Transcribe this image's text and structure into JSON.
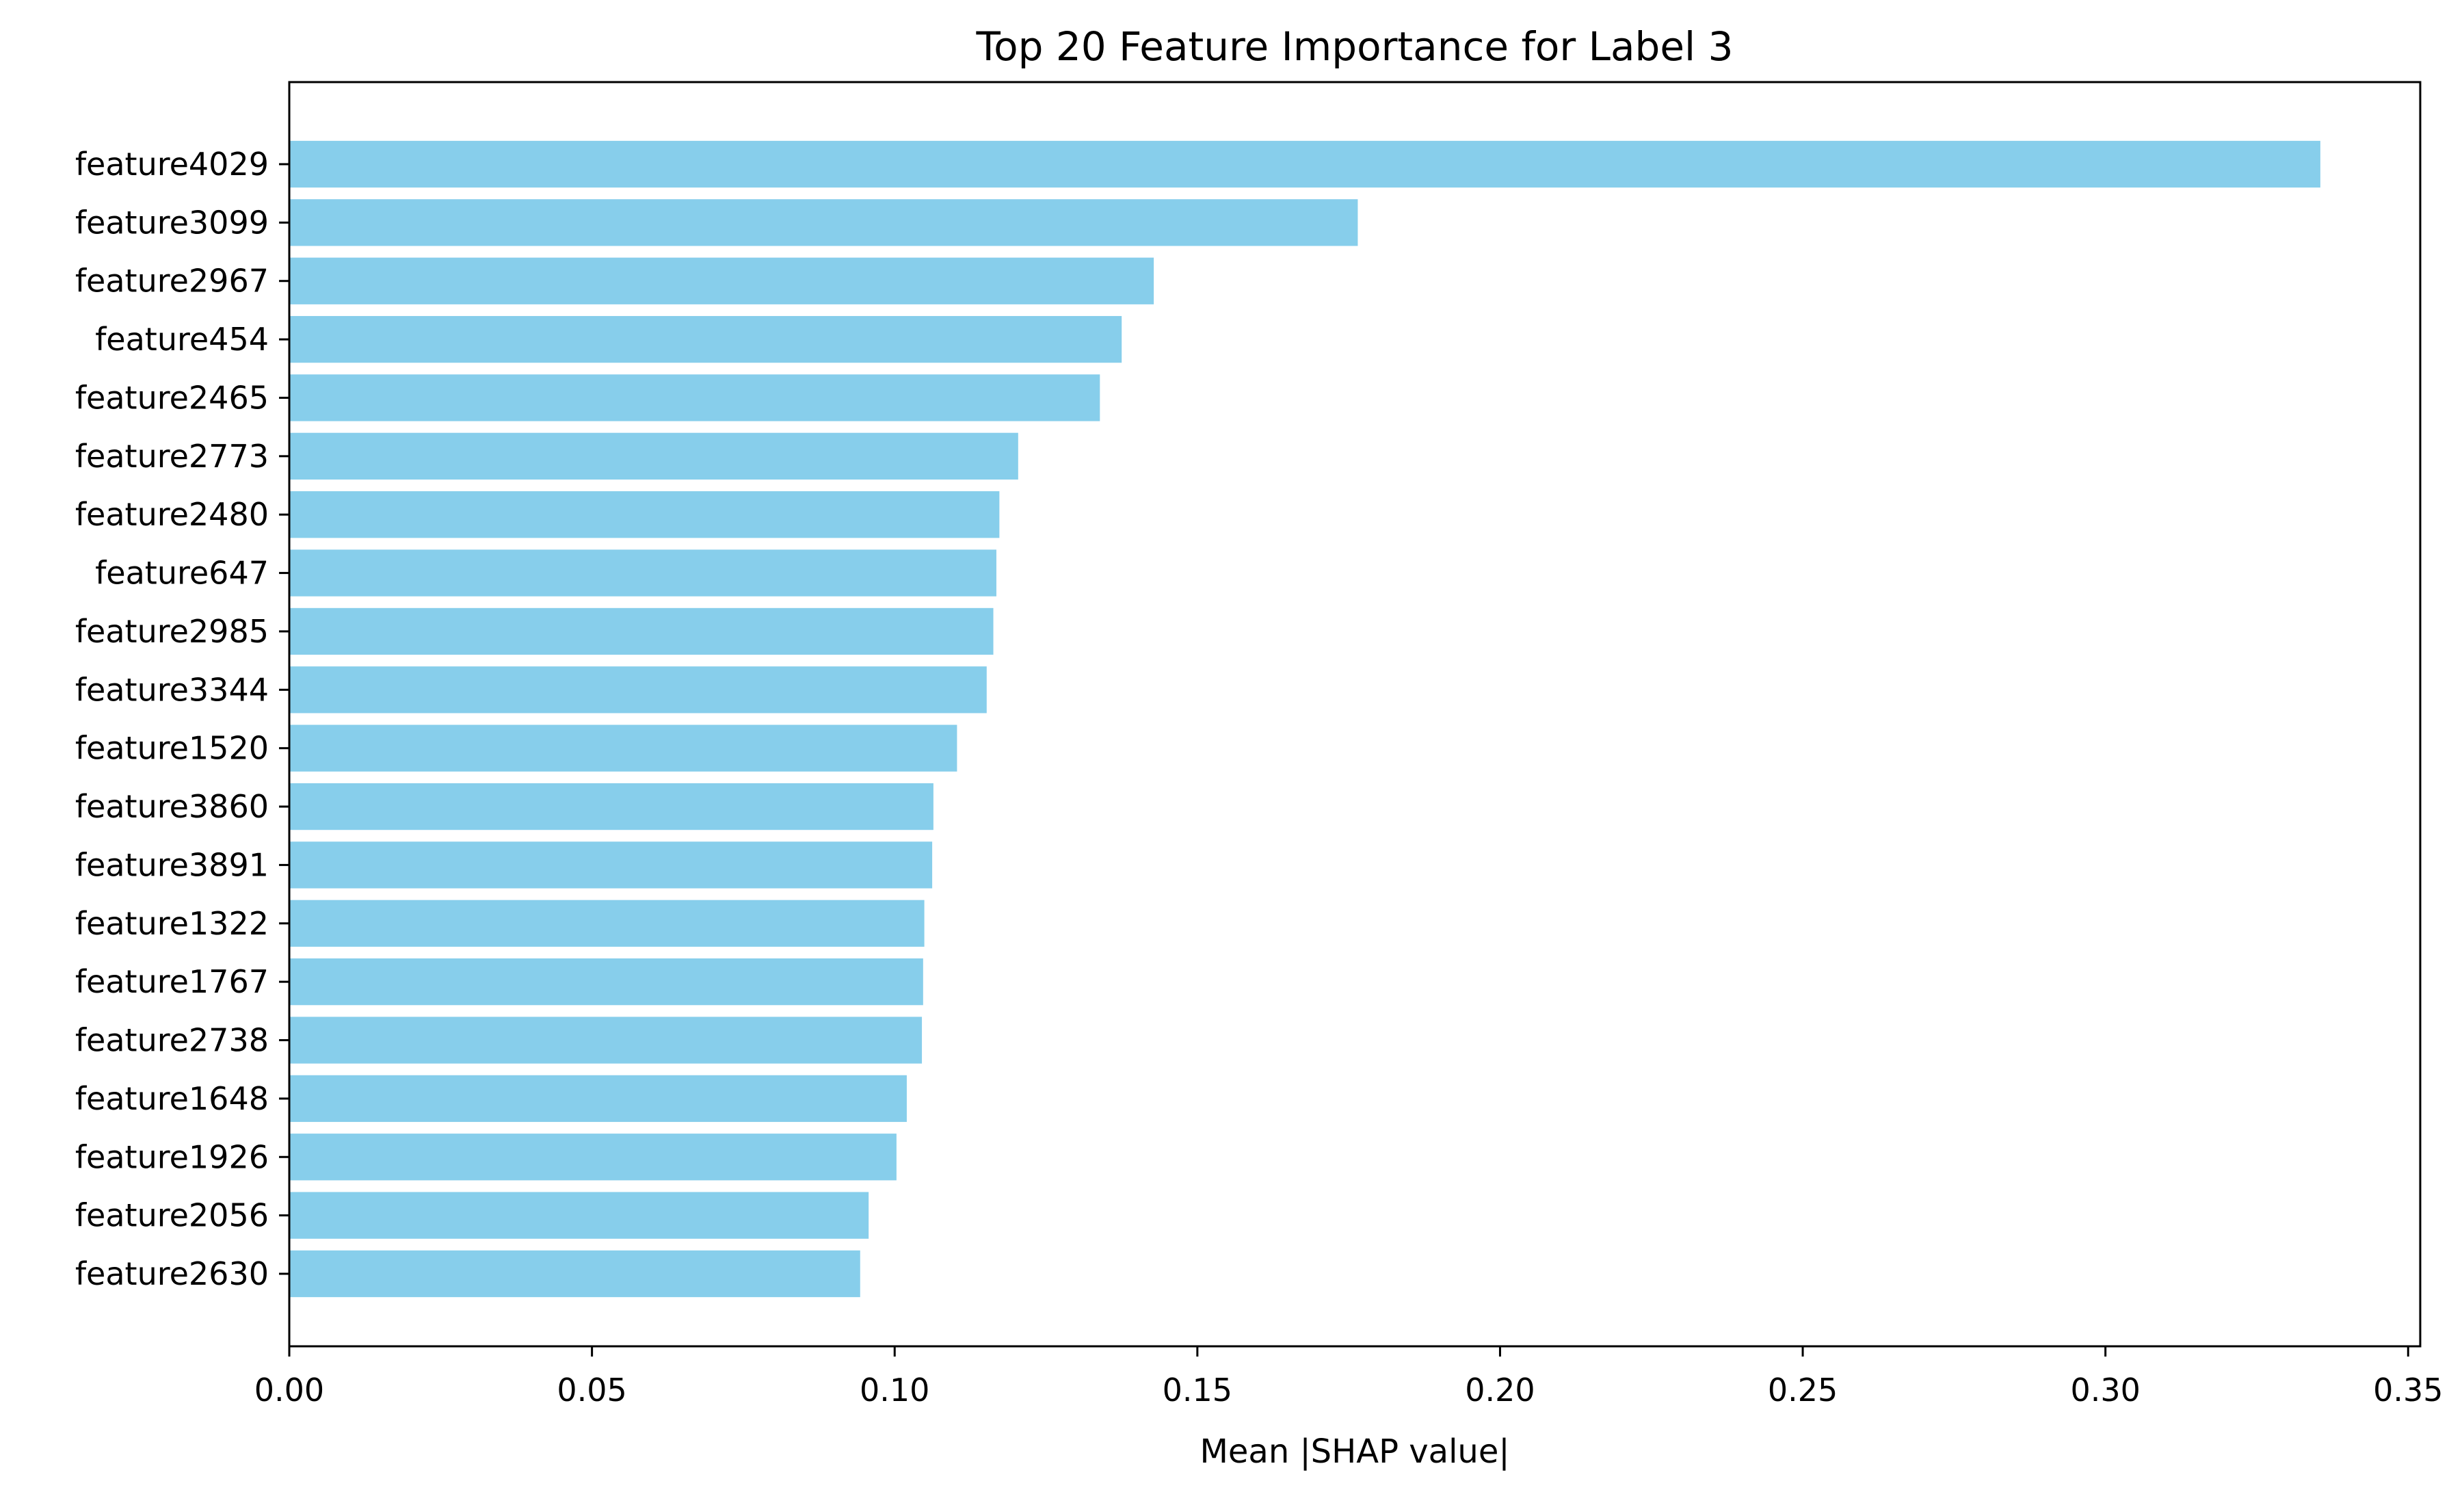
{
  "chart_data": {
    "type": "bar",
    "orientation": "horizontal",
    "title": "Top 20 Feature Importance for Label 3",
    "xlabel": "Mean |SHAP value|",
    "ylabel": "",
    "xlim": [
      0,
      0.352
    ],
    "x_ticks": [
      "0.00",
      "0.05",
      "0.10",
      "0.15",
      "0.20",
      "0.25",
      "0.30",
      "0.35"
    ],
    "x_tick_values": [
      0,
      0.05,
      0.1,
      0.15,
      0.2,
      0.25,
      0.3,
      0.35
    ],
    "grid": false,
    "bar_color": "#87CEEB",
    "categories": [
      "feature4029",
      "feature3099",
      "feature2967",
      "feature454",
      "feature2465",
      "feature2773",
      "feature2480",
      "feature647",
      "feature2985",
      "feature3344",
      "feature1520",
      "feature3860",
      "feature3891",
      "feature1322",
      "feature1767",
      "feature2738",
      "feature1648",
      "feature1926",
      "feature2056",
      "feature2630"
    ],
    "values": [
      0.3355,
      0.1765,
      0.1428,
      0.1375,
      0.1339,
      0.1204,
      0.1173,
      0.1168,
      0.1163,
      0.1152,
      0.1103,
      0.1064,
      0.1062,
      0.1049,
      0.1047,
      0.1045,
      0.102,
      0.1003,
      0.0957,
      0.0943
    ]
  }
}
